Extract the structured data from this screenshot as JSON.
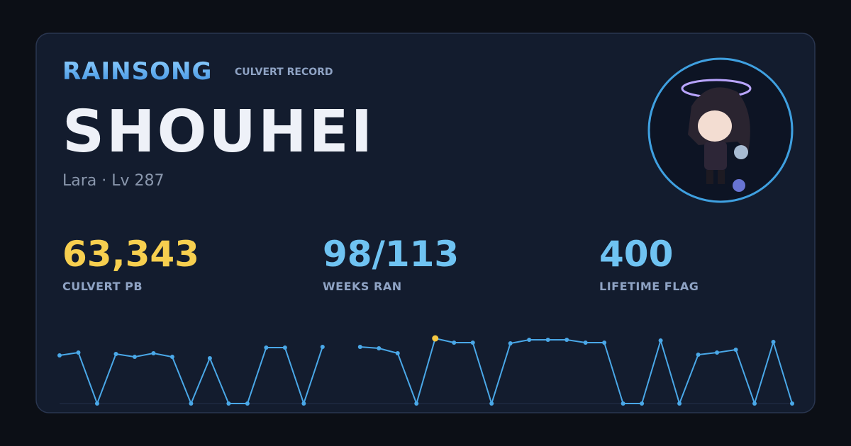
{
  "header": {
    "brand": "RAINSONG",
    "subtitle": "CULVERT RECORD"
  },
  "profile": {
    "name": "SHOUHEI",
    "details": "Lara · Lv 287"
  },
  "stats": [
    {
      "value": "63,343",
      "label": "CULVERT PB",
      "color": "#f7cf4f"
    },
    {
      "value": "98/113",
      "label": "WEEKS RAN",
      "color": "#6fc3f2"
    },
    {
      "value": "400",
      "label": "LIFETIME FLAG",
      "color": "#6fc3f2"
    }
  ],
  "chart_data": {
    "type": "line",
    "color": "#4aa8e8",
    "highlight_color": "#f5c842",
    "values": [
      46800,
      49600,
      0,
      48200,
      45400,
      48900,
      45400,
      0,
      44100,
      0,
      0,
      54400,
      54400,
      0,
      55100,
      null,
      55100,
      53700,
      48900,
      0,
      63343,
      59200,
      59200,
      0,
      58500,
      62000,
      62000,
      62000,
      59200,
      59200,
      0,
      0,
      61300,
      0,
      47500,
      49600,
      52300,
      0,
      59900,
      0
    ]
  }
}
